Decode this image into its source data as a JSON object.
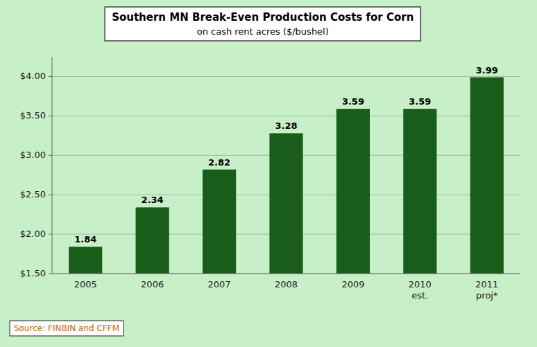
{
  "chart_data": {
    "type": "bar",
    "title": "Southern MN Break-Even Production Costs for Corn",
    "subtitle": "on cash rent acres ($/bushel)",
    "categories": [
      "2005",
      "2006",
      "2007",
      "2008",
      "2009",
      "2010\nest.",
      "2011\nproj*"
    ],
    "values": [
      1.84,
      2.34,
      2.82,
      3.28,
      3.59,
      3.59,
      3.99
    ],
    "color": "#1a5c1a",
    "ylim": [
      1.5,
      4.25
    ],
    "yticks": [
      {
        "value": 1.5,
        "label": "$1.50"
      },
      {
        "value": 2.0,
        "label": "$2.00"
      },
      {
        "value": 2.5,
        "label": "$2.50"
      },
      {
        "value": 3.0,
        "label": "$3.00"
      },
      {
        "value": 3.5,
        "label": "$3.50"
      },
      {
        "value": 4.0,
        "label": "$4.00"
      }
    ],
    "grid": true,
    "data_labels": true,
    "annotations": [
      "Source: FINBIN and CFFM"
    ]
  }
}
